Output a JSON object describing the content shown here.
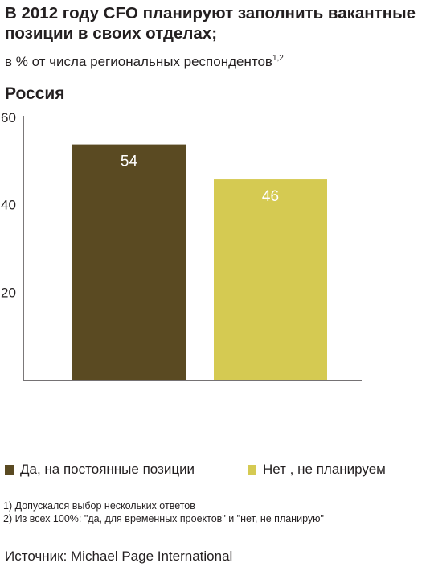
{
  "title": "В 2012 году CFO планируют заполнить вакантные позиции в своих отделах;",
  "subtitle": "в % от числа региональных респондентов",
  "subtitle_sup": "1,2",
  "region": "Россия",
  "chart_data": {
    "type": "bar",
    "categories": [
      "Да, на постоянные позиции",
      "Нет , не планируем"
    ],
    "values": [
      54,
      46
    ],
    "colors": [
      "#5a4a22",
      "#d5ca52"
    ],
    "label_color": "#ffffff",
    "yticks": [
      20,
      40,
      60
    ],
    "ylim": [
      0,
      60
    ],
    "grid": false
  },
  "legend": [
    {
      "label": "Да, на постоянные позиции",
      "color": "#5a4a22"
    },
    {
      "label": "Нет , не планируем",
      "color": "#d5ca52"
    }
  ],
  "notes": [
    "1) Допускался выбор нескольких ответов",
    "2) Из всех 100%: \"да, для временных проектов\" и \"нет, не планирую\""
  ],
  "source": "Источник: Michael Page International"
}
